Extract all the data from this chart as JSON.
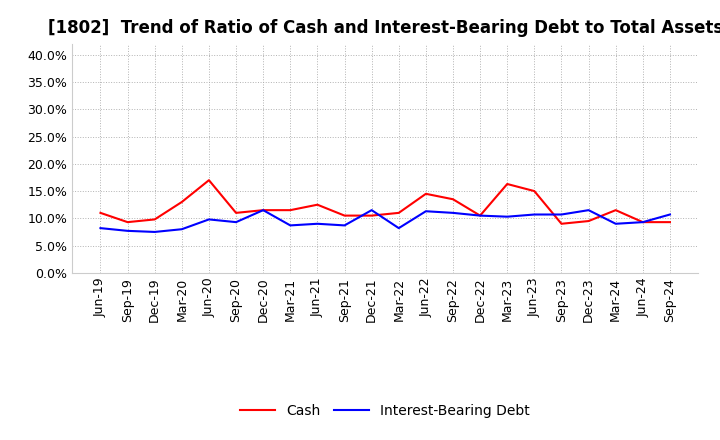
{
  "title": "[1802]  Trend of Ratio of Cash and Interest-Bearing Debt to Total Assets",
  "x_labels": [
    "Jun-19",
    "Sep-19",
    "Dec-19",
    "Mar-20",
    "Jun-20",
    "Sep-20",
    "Dec-20",
    "Mar-21",
    "Jun-21",
    "Sep-21",
    "Dec-21",
    "Mar-22",
    "Jun-22",
    "Sep-22",
    "Dec-22",
    "Mar-23",
    "Jun-23",
    "Sep-23",
    "Dec-23",
    "Mar-24",
    "Jun-24",
    "Sep-24"
  ],
  "cash": [
    0.11,
    0.093,
    0.098,
    0.13,
    0.17,
    0.11,
    0.115,
    0.115,
    0.125,
    0.105,
    0.105,
    0.11,
    0.145,
    0.135,
    0.105,
    0.163,
    0.15,
    0.09,
    0.095,
    0.115,
    0.093,
    0.093
  ],
  "interest_bearing_debt": [
    0.082,
    0.077,
    0.075,
    0.08,
    0.098,
    0.093,
    0.115,
    0.087,
    0.09,
    0.087,
    0.115,
    0.082,
    0.113,
    0.11,
    0.105,
    0.103,
    0.107,
    0.107,
    0.115,
    0.09,
    0.093,
    0.107
  ],
  "cash_color": "#ff0000",
  "debt_color": "#0000ff",
  "ylim": [
    0.0,
    0.42
  ],
  "yticks": [
    0.0,
    0.05,
    0.1,
    0.15,
    0.2,
    0.25,
    0.3,
    0.35,
    0.4
  ],
  "legend_cash": "Cash",
  "legend_debt": "Interest-Bearing Debt",
  "background_color": "#ffffff",
  "grid_color": "#aaaaaa",
  "title_fontsize": 12,
  "tick_fontsize": 9,
  "legend_fontsize": 10
}
